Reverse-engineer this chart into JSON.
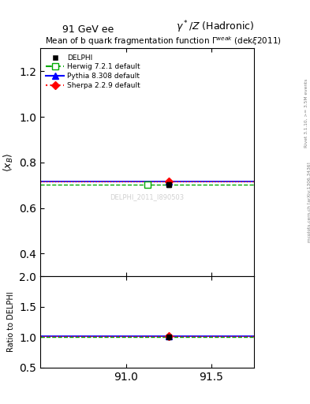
{
  "title_top_left": "91 GeV ee",
  "title_top_right": "γ*/Z (Hadronic)",
  "plot_title": "Mean of b quark fragmentation function",
  "ylabel_main": "<x_B>",
  "ylabel_ratio": "Ratio to DELPHI",
  "right_label": "Rivet 3.1.10, >= 3.5M events",
  "right_label2": "mcplots.cern.ch [arXiv:1306.3436]",
  "watermark": "DELPHI_2011_I890503",
  "xlim": [
    90.5,
    91.75
  ],
  "ylim_main": [
    0.3,
    1.3
  ],
  "ylim_ratio": [
    0.5,
    2.0
  ],
  "xticks": [
    91.0,
    91.5
  ],
  "yticks_main": [
    0.4,
    0.6,
    0.8,
    1.0,
    1.2
  ],
  "yticks_ratio": [
    0.5,
    1.0,
    1.5,
    2.0
  ],
  "data_x": 91.25,
  "data_y": 0.7027,
  "data_yerr": 0.01,
  "herwig_y": 0.701,
  "pythia_y": 0.718,
  "sherpa_x": 91.25,
  "sherpa_y": 0.717,
  "herwig_color": "#00aa00",
  "pythia_color": "#0000ff",
  "sherpa_color": "#ff0000",
  "data_color": "#000000",
  "herwig_ratio": 1.0,
  "pythia_ratio": 1.022,
  "sherpa_ratio": 1.021
}
